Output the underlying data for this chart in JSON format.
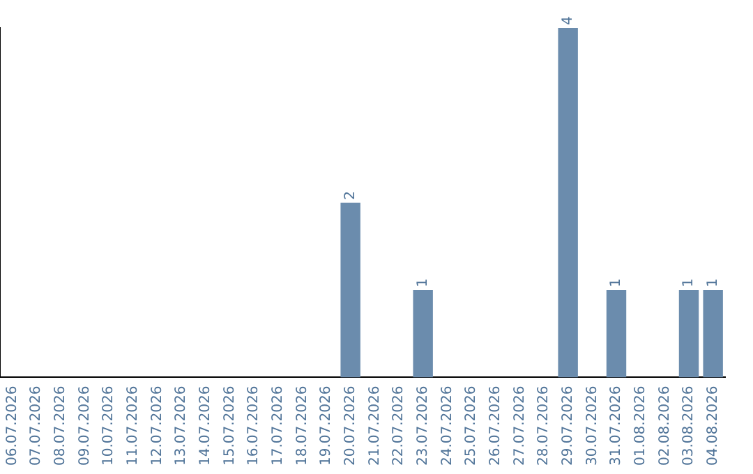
{
  "chart_data": {
    "type": "bar",
    "categories": [
      "06.07.2026",
      "07.07.2026",
      "08.07.2026",
      "09.07.2026",
      "10.07.2026",
      "11.07.2026",
      "12.07.2026",
      "13.07.2026",
      "14.07.2026",
      "15.07.2026",
      "16.07.2026",
      "17.07.2026",
      "18.07.2026",
      "19.07.2026",
      "20.07.2026",
      "21.07.2026",
      "22.07.2026",
      "23.07.2026",
      "24.07.2026",
      "25.07.2026",
      "26.07.2026",
      "27.07.2026",
      "28.07.2026",
      "29.07.2026",
      "30.07.2026",
      "31.07.2026",
      "01.08.2026",
      "02.08.2026",
      "03.08.2026",
      "04.08.2026"
    ],
    "values": [
      null,
      null,
      null,
      null,
      null,
      null,
      null,
      null,
      null,
      null,
      null,
      null,
      null,
      null,
      2,
      null,
      null,
      1,
      null,
      null,
      null,
      null,
      null,
      4,
      null,
      1,
      null,
      null,
      1,
      1
    ],
    "value_labels": [
      null,
      null,
      null,
      null,
      null,
      null,
      null,
      null,
      null,
      null,
      null,
      null,
      null,
      null,
      "2",
      null,
      null,
      "1",
      null,
      null,
      null,
      null,
      null,
      "4",
      null,
      "1",
      null,
      null,
      "1",
      "1"
    ],
    "color": "#6b8cad",
    "tick_labels": "x",
    "grid": false,
    "legend": false
  }
}
